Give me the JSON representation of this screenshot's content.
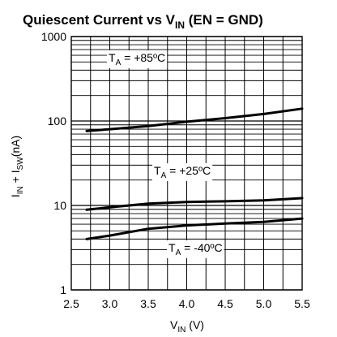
{
  "chart_data": {
    "type": "line",
    "title": {
      "prefix": "Quiescent Current vs V",
      "sub": "IN",
      "suffix": " (EN = GND)"
    },
    "xlabel": {
      "main": "V",
      "sub": "IN",
      "suffix": " (V)"
    },
    "ylabel": {
      "part1": "I",
      "sub1": "IN",
      "part2": " + I",
      "sub2": "SW",
      "suffix": "(nA)"
    },
    "xlim": [
      2.5,
      5.5
    ],
    "ylim": [
      1,
      1000
    ],
    "y_scale": "log",
    "grid": true,
    "x_ticks": [
      "2.5",
      "3.0",
      "3.5",
      "4.0",
      "4.5",
      "5.0",
      "5.5"
    ],
    "y_ticks": [
      "1",
      "10",
      "100",
      "1000"
    ],
    "series": [
      {
        "name": {
          "main": "T",
          "sub": "A",
          "rest": " = +85ºC"
        },
        "x": [
          2.7,
          3.0,
          3.5,
          4.0,
          4.5,
          5.0,
          5.5
        ],
        "y": [
          76,
          80,
          87,
          98,
          108,
          121,
          140
        ]
      },
      {
        "name": {
          "main": "T",
          "sub": "A",
          "rest": " = +25ºC"
        },
        "x": [
          2.7,
          3.0,
          3.5,
          4.0,
          4.5,
          5.0,
          5.5
        ],
        "y": [
          8.9,
          9.5,
          10.5,
          11.0,
          11.2,
          11.5,
          12.2
        ]
      },
      {
        "name": {
          "main": "T",
          "sub": "A",
          "rest": " = -40ºC"
        },
        "x": [
          2.7,
          3.0,
          3.5,
          4.0,
          4.5,
          5.0,
          5.5
        ],
        "y": [
          4.0,
          4.4,
          5.3,
          5.8,
          6.1,
          6.4,
          7.0
        ]
      }
    ]
  }
}
